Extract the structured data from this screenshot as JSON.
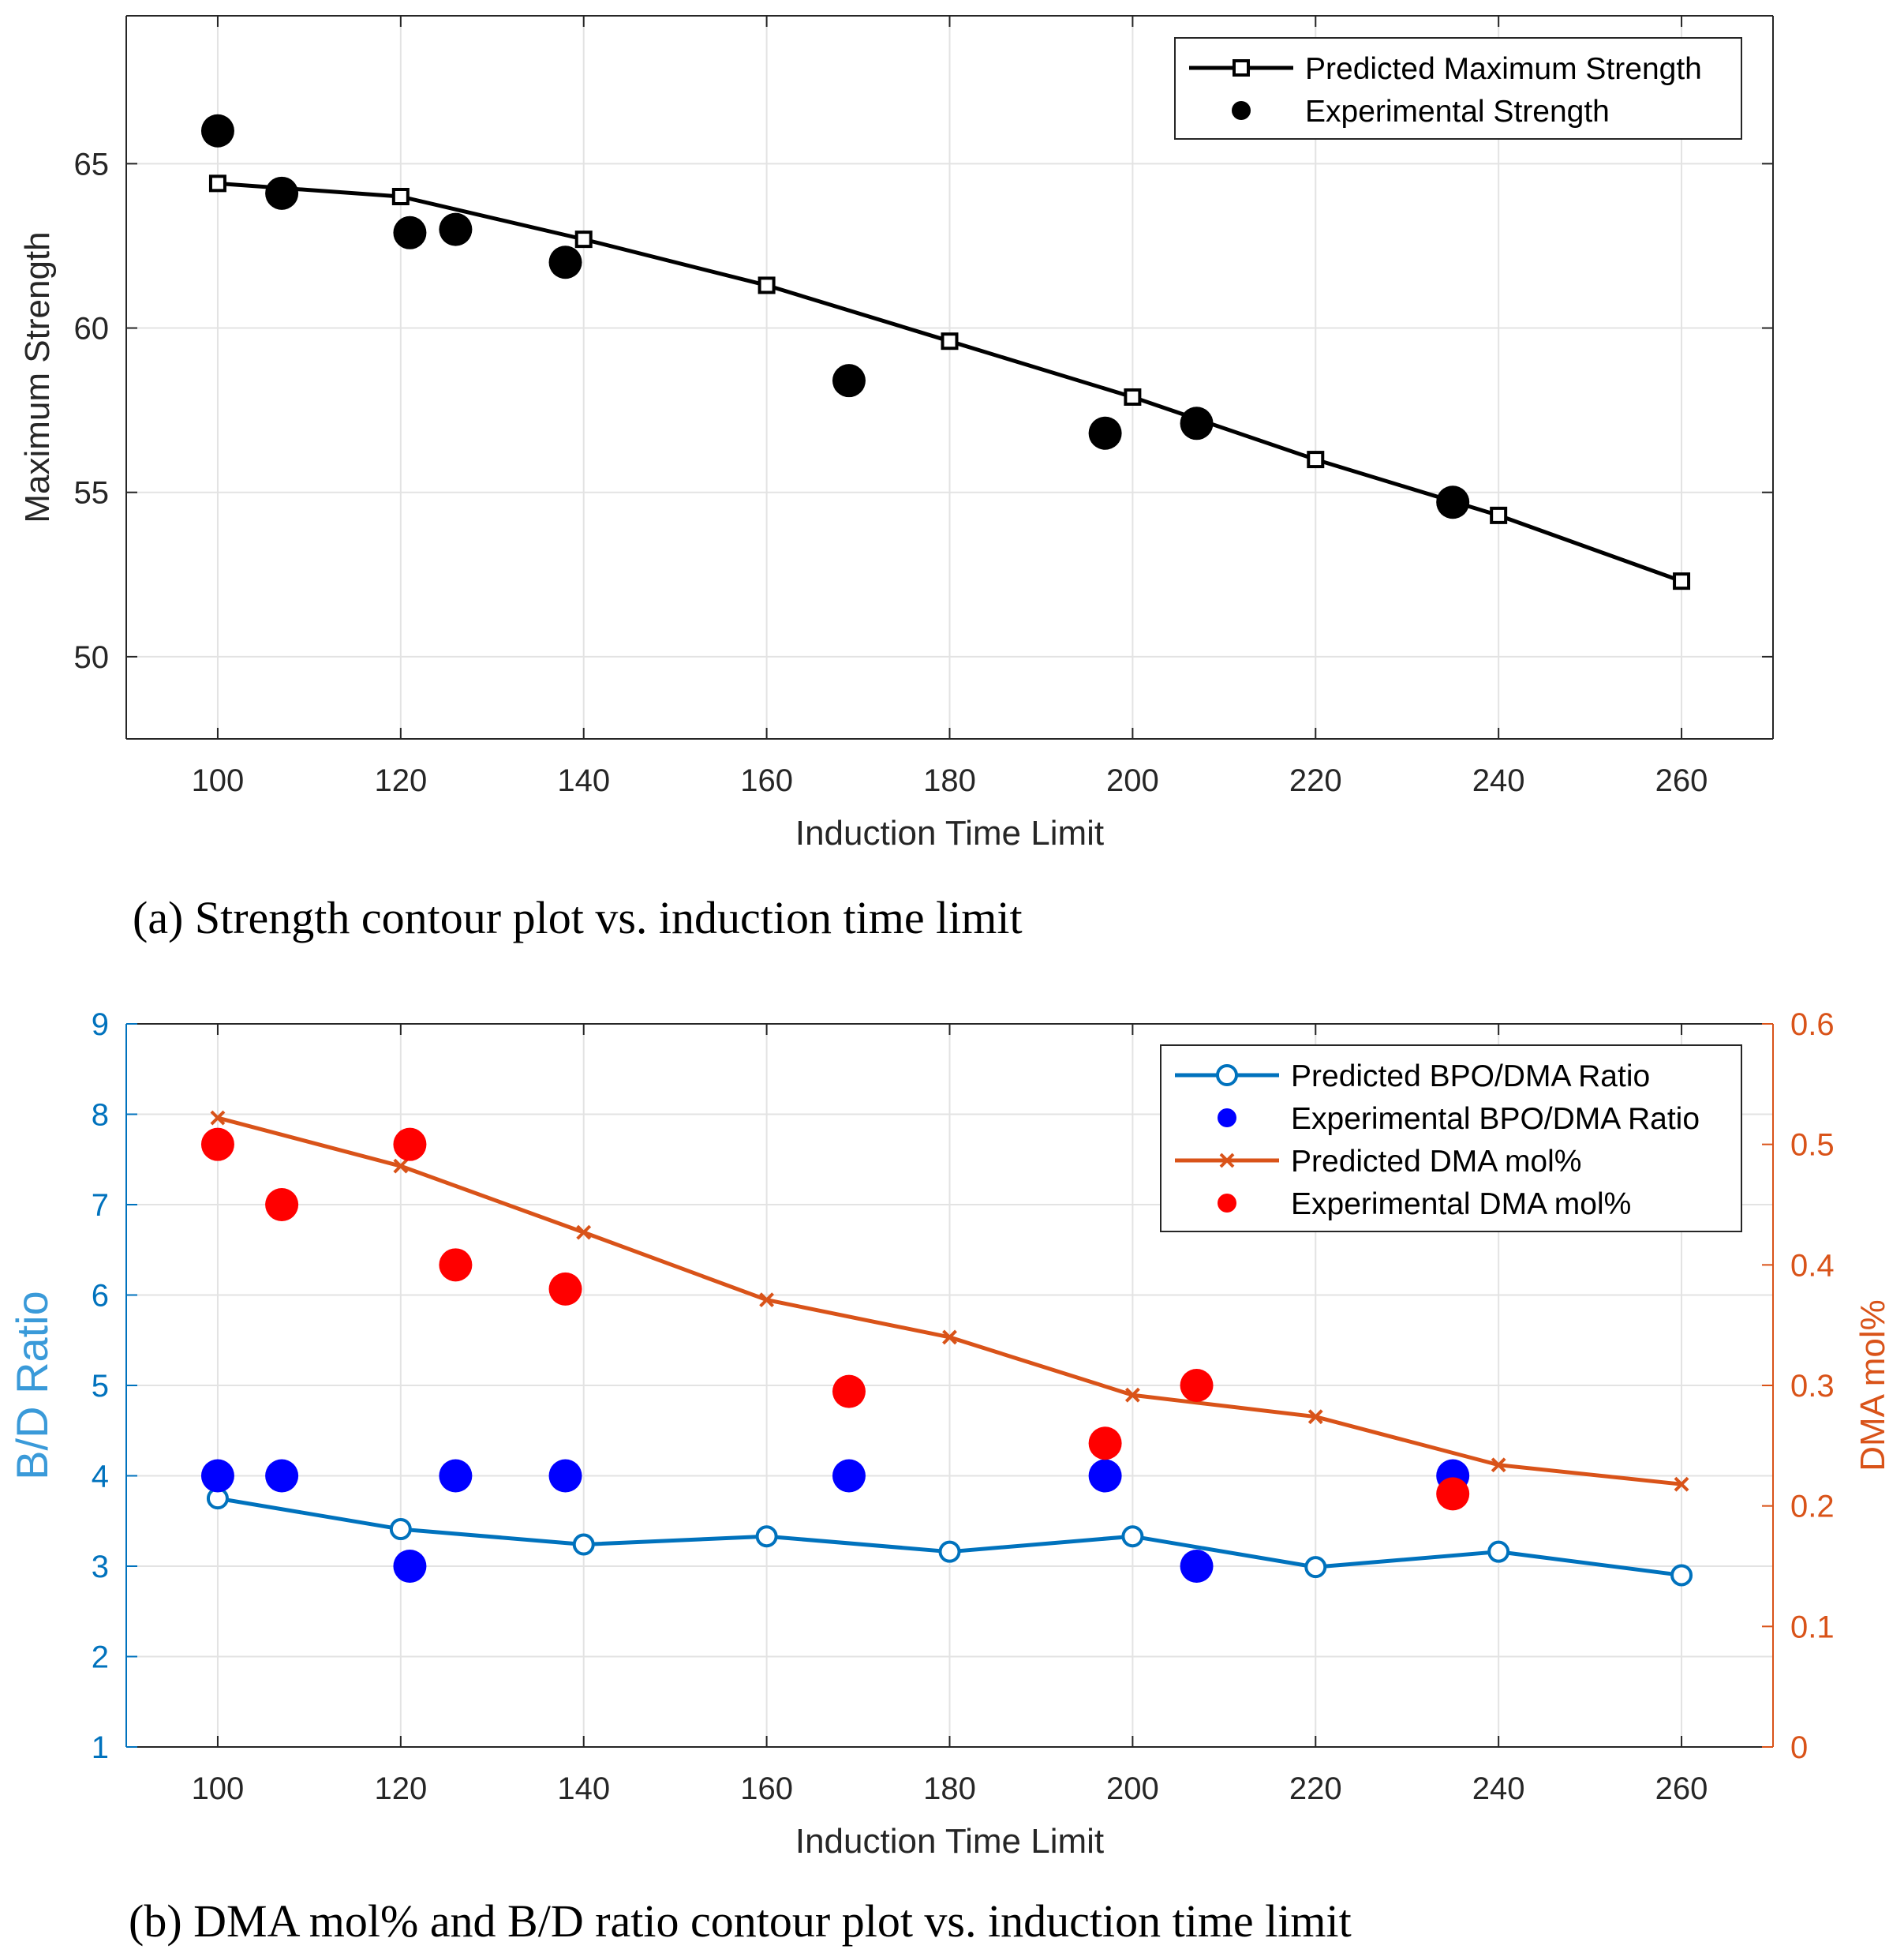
{
  "chart_data": [
    {
      "id": "a",
      "type": "line",
      "caption": "(a) Strength contour plot vs. induction time limit",
      "xlabel": "Induction Time Limit",
      "ylabel": "Maximum Strength",
      "xlim": [
        90,
        270
      ],
      "ylim": [
        47.5,
        69.5
      ],
      "xticks": [
        100,
        120,
        140,
        160,
        180,
        200,
        220,
        240,
        260
      ],
      "yticks": [
        50,
        55,
        60,
        65
      ],
      "grid": true,
      "legend_position": "top-right",
      "series": [
        {
          "name": "Predicted Maximum Strength",
          "kind": "line",
          "marker": "square",
          "color": "#000000",
          "x": [
            100,
            120,
            140,
            160,
            180,
            200,
            220,
            240,
            260
          ],
          "y": [
            64.4,
            64.0,
            62.7,
            61.3,
            59.6,
            57.9,
            56.0,
            54.3,
            52.3
          ]
        },
        {
          "name": "Experimental Strength",
          "kind": "scatter",
          "marker": "circle",
          "color": "#000000",
          "x": [
            100,
            107,
            121,
            126,
            138,
            169,
            197,
            207,
            235
          ],
          "y": [
            66.0,
            64.1,
            62.9,
            63.0,
            62.0,
            58.4,
            56.8,
            57.1,
            54.7
          ]
        }
      ]
    },
    {
      "id": "b",
      "type": "line",
      "caption": "(b) DMA mol% and B/D ratio contour plot vs. induction time limit",
      "xlabel": "Induction Time Limit",
      "ylabel": "B/D Ratio",
      "ylabel_right": "DMA mol%",
      "xlim": [
        90,
        270
      ],
      "ylim": [
        1,
        9
      ],
      "ylim_right": [
        0,
        0.6
      ],
      "xticks": [
        100,
        120,
        140,
        160,
        180,
        200,
        220,
        240,
        260
      ],
      "yticks": [
        1,
        2,
        3,
        4,
        5,
        6,
        7,
        8,
        9
      ],
      "yticks_right": [
        0,
        0.1,
        0.2,
        0.3,
        0.4,
        0.5,
        0.6
      ],
      "left_axis_color": "#0072BD",
      "right_axis_color": "#D95319",
      "grid": true,
      "legend_position": "top-right",
      "series": [
        {
          "name": "Predicted BPO/DMA Ratio",
          "kind": "line",
          "marker": "open-circle",
          "axis": "left",
          "color": "#0072BD",
          "x": [
            100,
            120,
            140,
            160,
            180,
            200,
            220,
            240,
            260
          ],
          "y": [
            3.75,
            3.41,
            3.24,
            3.33,
            3.16,
            3.33,
            2.99,
            3.16,
            2.9
          ]
        },
        {
          "name": "Experimental BPO/DMA Ratio",
          "kind": "scatter",
          "marker": "circle",
          "axis": "left",
          "color": "#0000FF",
          "x": [
            100,
            107,
            121,
            126,
            138,
            169,
            197,
            207,
            235
          ],
          "y": [
            4.0,
            4.0,
            3.0,
            4.0,
            4.0,
            4.0,
            4.0,
            3.0,
            4.0
          ]
        },
        {
          "name": "Predicted DMA mol%",
          "kind": "line",
          "marker": "x",
          "axis": "right",
          "color": "#D95319",
          "x": [
            100,
            120,
            140,
            160,
            180,
            200,
            220,
            240,
            260
          ],
          "y": [
            0.522,
            0.482,
            0.427,
            0.371,
            0.34,
            0.292,
            0.274,
            0.234,
            0.218
          ]
        },
        {
          "name": "Experimental DMA mol%",
          "kind": "scatter",
          "marker": "circle",
          "axis": "right",
          "color": "#FF0000",
          "x": [
            100,
            107,
            121,
            126,
            138,
            169,
            197,
            207,
            235
          ],
          "y": [
            0.5,
            0.45,
            0.5,
            0.4,
            0.38,
            0.295,
            0.252,
            0.3,
            0.21
          ]
        }
      ]
    }
  ]
}
